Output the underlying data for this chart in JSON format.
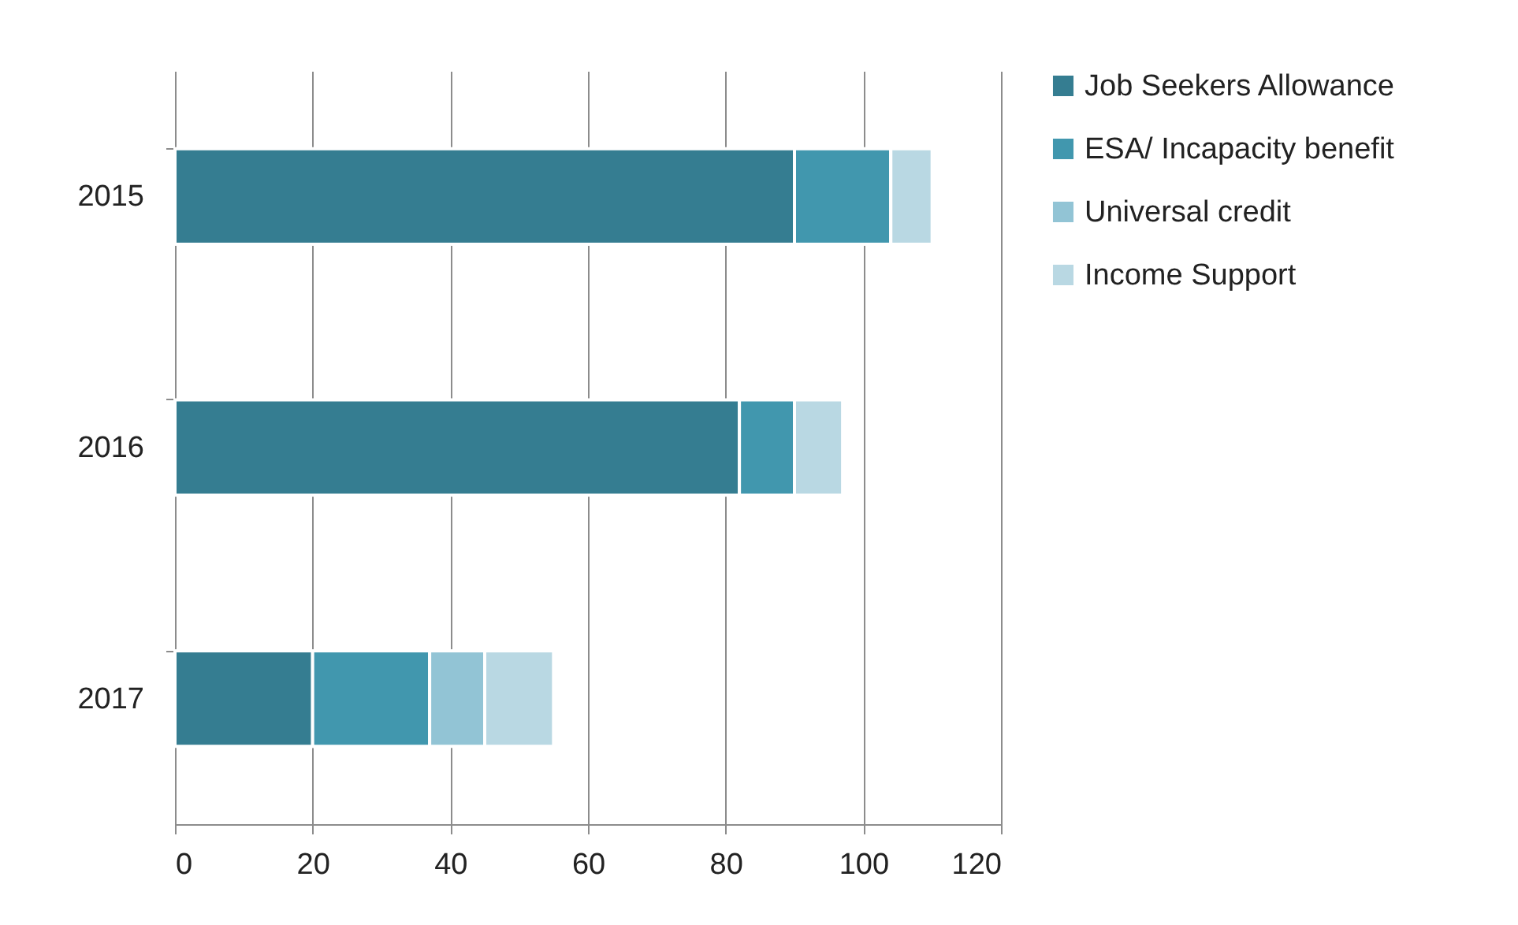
{
  "chart_data": {
    "type": "bar",
    "orientation": "horizontal",
    "stacked": true,
    "categories": [
      "2015",
      "2016",
      "2017"
    ],
    "series": [
      {
        "name": "Job Seekers Allowance",
        "color": "#357d91",
        "values": [
          90,
          82,
          20
        ]
      },
      {
        "name": "ESA/ Incapacity benefit",
        "color": "#4197ae",
        "values": [
          14,
          8,
          17
        ]
      },
      {
        "name": "Universal credit",
        "color": "#92c4d5",
        "values": [
          0,
          0,
          8
        ]
      },
      {
        "name": "Income Support",
        "color": "#b9d8e3",
        "values": [
          6,
          7,
          10
        ]
      }
    ],
    "xlim": [
      0,
      120
    ],
    "xticks": [
      0,
      20,
      40,
      60,
      80,
      100,
      120
    ],
    "grid": "x",
    "legend": "right"
  }
}
